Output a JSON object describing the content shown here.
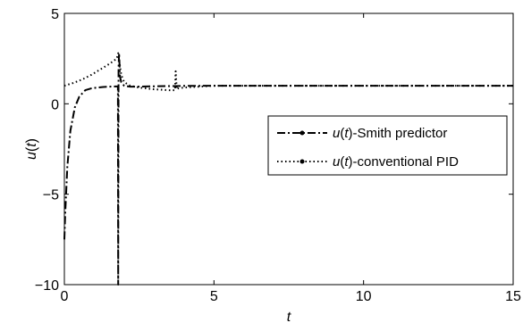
{
  "chart_data": {
    "type": "line",
    "title": "",
    "xlabel": "t",
    "ylabel": "u(t)",
    "xlim": [
      0,
      15
    ],
    "ylim": [
      -10,
      5
    ],
    "x_ticks": [
      "0",
      "5",
      "10",
      "15"
    ],
    "y_ticks": [
      "5",
      "0",
      "−5",
      "−10"
    ],
    "grid": false,
    "legend_position": "center-right",
    "series": [
      {
        "name": "u(t)-Smith predictor",
        "name_parts": [
          "u",
          "(",
          "t",
          ")-Smith predictor"
        ],
        "style": "dash-dot",
        "color": "#000000",
        "x": [
          0,
          0.03,
          0.1,
          0.2,
          0.35,
          0.5,
          0.7,
          0.9,
          1.1,
          1.3,
          1.5,
          1.7,
          1.79,
          1.8,
          1.81,
          1.83,
          1.86,
          1.9,
          2.0,
          2.2,
          2.5,
          3.0,
          3.5,
          4.0,
          5.0,
          7.0,
          10.0,
          15.0
        ],
        "y": [
          -7.5,
          -6.0,
          -3.5,
          -1.5,
          -0.2,
          0.4,
          0.75,
          0.85,
          0.9,
          0.93,
          0.95,
          0.96,
          0.96,
          -10.0,
          2.0,
          2.8,
          1.5,
          1.2,
          1.0,
          0.95,
          0.95,
          0.97,
          0.98,
          0.99,
          1.0,
          1.0,
          1.0,
          1.0
        ]
      },
      {
        "name": "u(t)-conventional PID",
        "name_parts": [
          "u",
          "(",
          "t",
          ")-conventional PID"
        ],
        "style": "dotted",
        "color": "#000000",
        "x": [
          0,
          0.3,
          0.6,
          0.9,
          1.2,
          1.5,
          1.75,
          1.8,
          1.9,
          2.0,
          2.2,
          2.5,
          3.0,
          3.5,
          3.7,
          3.72,
          3.74,
          3.76,
          3.8,
          4.0,
          4.5,
          5.0,
          6.0,
          7.0,
          10.0,
          15.0
        ],
        "y": [
          1.0,
          1.15,
          1.35,
          1.6,
          1.9,
          2.2,
          2.5,
          2.8,
          1.6,
          1.2,
          1.0,
          0.9,
          0.8,
          0.75,
          0.75,
          1.8,
          1.2,
          0.8,
          0.85,
          0.9,
          0.95,
          1.0,
          1.0,
          1.0,
          1.0,
          1.0
        ]
      }
    ]
  }
}
